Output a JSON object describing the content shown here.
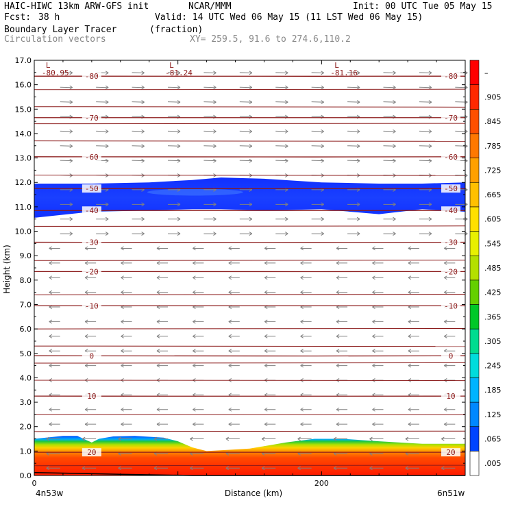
{
  "header": {
    "model": "HAIC-HIWC 13km ARW-GFS init",
    "center": "NCAR/MMM",
    "init": "Init: 00 UTC Tue 05 May 15",
    "fcst_label": "Fcst:",
    "fcst_value": "38 h",
    "valid": "Valid: 14 UTC Wed 06 May 15 (11 LST Wed 06 May 15)",
    "field": "Boundary Layer Tracer",
    "field_units": "(fraction)",
    "vectors": "Circulation vectors",
    "xy": "XY= 259.5, 91.6 to 274.6,110.2"
  },
  "colors": {
    "isotherm": "#8b1a1a",
    "vector": "#808080",
    "background": "#ffffff"
  },
  "chart_data": {
    "type": "heatmap",
    "xlabel": "Distance (km)",
    "ylabel": "Height (km)",
    "xlim": [
      0,
      300
    ],
    "ylim": [
      0,
      17
    ],
    "xticks": [
      0,
      200
    ],
    "yticks": [
      "0.0",
      "1.0",
      "2.0",
      "3.0",
      "4.0",
      "5.0",
      "6.0",
      "7.0",
      "8.0",
      "9.0",
      "10.0",
      "11.0",
      "12.0",
      "13.0",
      "14.0",
      "15.0",
      "16.0",
      "17.0"
    ],
    "x_end_labels": {
      "left": "4n53w",
      "right": "6n51w"
    },
    "colorbar": {
      "labels": [
        ".005",
        ".065",
        ".125",
        ".185",
        ".245",
        ".305",
        ".365",
        ".425",
        ".485",
        ".545",
        ".605",
        ".665",
        ".725",
        ".785",
        ".845",
        ".905",
        "–"
      ],
      "colors": [
        "#ffffff",
        "#0044ff",
        "#0088ff",
        "#00b4ff",
        "#00dcdc",
        "#00dc90",
        "#00c828",
        "#64d000",
        "#b4e000",
        "#e8f000",
        "#ffe000",
        "#ffc000",
        "#ffa000",
        "#ff7800",
        "#ff5000",
        "#ff2800",
        "#ff0000"
      ]
    },
    "pbl_tracer_top_km": {
      "x": [
        0,
        20,
        30,
        40,
        45,
        55,
        70,
        90,
        100,
        110,
        120,
        135,
        150,
        160,
        175,
        195,
        215,
        240,
        270,
        300
      ],
      "top": [
        1.5,
        1.62,
        1.62,
        1.35,
        1.5,
        1.6,
        1.62,
        1.55,
        1.4,
        1.15,
        1.0,
        1.05,
        1.1,
        1.2,
        1.35,
        1.5,
        1.5,
        1.4,
        1.3,
        1.3
      ]
    },
    "tracer_layer_km": {
      "x": [
        0,
        40,
        80,
        110,
        130,
        160,
        200,
        240,
        270,
        300
      ],
      "bottom": [
        10.55,
        10.8,
        10.85,
        10.9,
        10.9,
        10.85,
        10.9,
        10.7,
        10.9,
        10.8
      ],
      "top": [
        11.95,
        11.95,
        12.0,
        12.1,
        12.2,
        12.15,
        12.0,
        11.95,
        11.95,
        12.0
      ]
    },
    "isotherms": [
      {
        "value": "20",
        "y_km": 0.95
      },
      {
        "value": "10",
        "y_km": 3.25
      },
      {
        "value": "0",
        "y_km": 4.9
      },
      {
        "value": "-10",
        "y_km": 6.95
      },
      {
        "value": "-20",
        "y_km": 8.35
      },
      {
        "value": "-30",
        "y_km": 9.55
      },
      {
        "value": "-40",
        "y_km": 10.85
      },
      {
        "value": "-50",
        "y_km": 11.75
      },
      {
        "value": "-60",
        "y_km": 13.05
      },
      {
        "value": "-70",
        "y_km": 14.65
      },
      {
        "value": "-80",
        "y_km": 16.35
      }
    ],
    "lows": [
      {
        "label": "L",
        "value": "-80.95",
        "x_km": 9
      },
      {
        "label": "L",
        "value": "-81.24",
        "x_km": 95
      },
      {
        "label": "L",
        "value": "-81.16",
        "x_km": 210
      }
    ]
  }
}
